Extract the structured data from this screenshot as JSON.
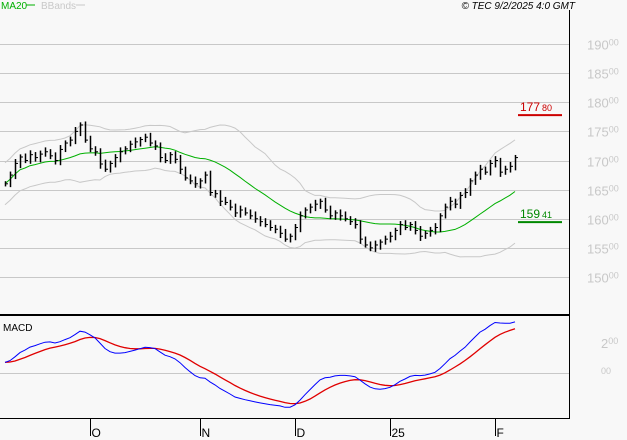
{
  "legend": {
    "ma_label": "MA20",
    "bb_label": "BBands"
  },
  "copyright": "© TEC 9/2/2025 4:0 GMT",
  "colors": {
    "bars": "#000000",
    "ma": "#00b000",
    "bbands": "#c8c8c8",
    "macd": "#0000ff",
    "signal": "#e00000",
    "resistance": "#cc0000",
    "support": "#008800",
    "grid": "#c8c8c8",
    "background": "#f8f8f8"
  },
  "chart_data": [
    {
      "type": "ohlc",
      "title": "",
      "y_ticks": [
        {
          "value": 19000,
          "main": "190",
          "dec": "00"
        },
        {
          "value": 18500,
          "main": "185",
          "dec": "00"
        },
        {
          "value": 18000,
          "main": "180",
          "dec": "00"
        },
        {
          "value": 17500,
          "main": "175",
          "dec": "00"
        },
        {
          "value": 17000,
          "main": "170",
          "dec": "00"
        },
        {
          "value": 16500,
          "main": "165",
          "dec": "00"
        },
        {
          "value": 16000,
          "main": "160",
          "dec": "00"
        },
        {
          "value": 15500,
          "main": "155",
          "dec": "00"
        },
        {
          "value": 15000,
          "main": "150",
          "dec": "00"
        }
      ],
      "ylim": [
        14500,
        19700
      ],
      "grid": true,
      "x_ticks": [
        {
          "label": "O",
          "index": 17
        },
        {
          "label": "N",
          "index": 39
        },
        {
          "label": "D",
          "index": 58
        },
        {
          "label": "25",
          "index": 77
        },
        {
          "label": "F",
          "index": 98
        }
      ],
      "close": [
        16600,
        16750,
        16950,
        17060,
        17000,
        17100,
        17050,
        17110,
        17150,
        17080,
        17000,
        17190,
        17300,
        17350,
        17500,
        17610,
        17350,
        17200,
        17150,
        16940,
        16850,
        16950,
        17050,
        17150,
        17200,
        17280,
        17320,
        17360,
        17400,
        17300,
        17250,
        17050,
        17000,
        17100,
        17020,
        16850,
        16700,
        16650,
        16600,
        16650,
        16750,
        16450,
        16430,
        16300,
        16280,
        16200,
        16100,
        16150,
        16100,
        16050,
        16000,
        15950,
        15900,
        15850,
        15820,
        15750,
        15650,
        15700,
        15850,
        16050,
        16150,
        16200,
        16250,
        16300,
        16150,
        16050,
        16100,
        16050,
        16000,
        15950,
        15900,
        15650,
        15550,
        15500,
        15550,
        15600,
        15650,
        15700,
        15800,
        15900,
        15850,
        15900,
        15800,
        15700,
        15750,
        15800,
        15850,
        16050,
        16200,
        16300,
        16250,
        16400,
        16450,
        16650,
        16750,
        16850,
        16800,
        16950,
        17000,
        16800,
        16850,
        16900,
        17050
      ],
      "indicators": [
        "MA20",
        "BBands"
      ],
      "levels": [
        {
          "name": "resistance",
          "value": 17780,
          "main": "177",
          "dec": "80"
        },
        {
          "name": "support",
          "value": 15941,
          "main": "159",
          "dec": "41"
        }
      ]
    },
    {
      "type": "line",
      "title": "MACD",
      "y_ticks": [
        {
          "value": 200,
          "main": "2",
          "dec": "00"
        },
        {
          "value": 0,
          "main": "0",
          "dec": "00"
        }
      ],
      "series": [
        {
          "name": "MACD"
        },
        {
          "name": "Signal"
        }
      ]
    }
  ]
}
